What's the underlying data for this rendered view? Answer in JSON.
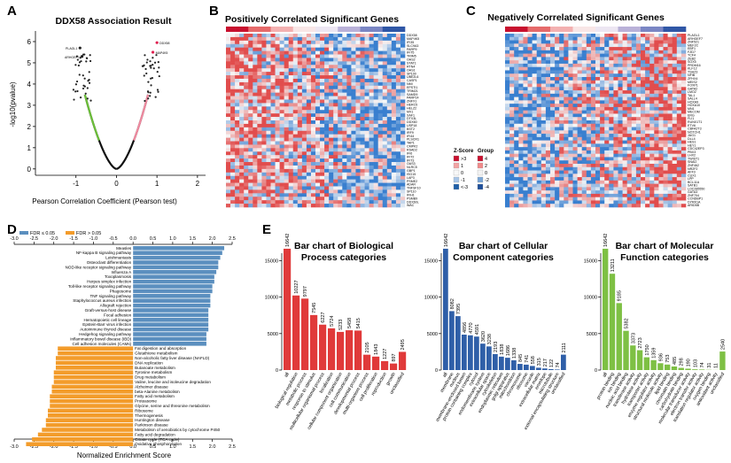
{
  "panel_labels": [
    "A",
    "B",
    "C",
    "D",
    "E"
  ],
  "colors": {
    "red": "#e03a3a",
    "blue": "#3a6fb7",
    "green": "#7ec044",
    "orange": "#f39c2b",
    "steelblue": "#5b8fbf",
    "black": "#111111",
    "volcano_green": "#6cbf3a",
    "volcano_pink": "#f08aa0"
  },
  "heatmap_legend": {
    "zscore_title": "Z-Score",
    "group_title": "Group",
    "zscore_levels": [
      ">3",
      "1",
      "0",
      "-1",
      "<-3"
    ],
    "zscore_colors": [
      "#c8102e",
      "#f3a4a4",
      "#f7f7f7",
      "#a9c6e8",
      "#1f5fa8"
    ],
    "group_levels": [
      "4",
      "2",
      "0",
      "-2",
      "-4"
    ],
    "group_colors": [
      "#c8102e",
      "#f08a8a",
      "#f2f2f2",
      "#7aa6d6",
      "#1f4f9a"
    ]
  },
  "heatmap_b": {
    "title": "Positively Correlated Significant Genes",
    "genes": [
      "DDX58",
      "MAP4K5",
      "IFI35",
      "SLC9A3",
      "PARP9",
      "IFIT5",
      "TRIM5",
      "OAS2",
      "STAT1",
      "RTN4",
      "OAS1",
      "SP100",
      "UBE2L6",
      "CASP1",
      "NMI",
      "EPSTI1",
      "TRIM21",
      "SAMD9",
      "PARP14",
      "ZNFX1",
      "HERC5",
      "HELZ2",
      "MX1",
      "XAF1",
      "DTX3L",
      "DDX60",
      "USP18",
      "BST2",
      "IRF9",
      "IFI44",
      "PLSCR1",
      "TAP1",
      "CMPK2",
      "RSAD2",
      "IFI6",
      "IFIT2",
      "IFIT3",
      "OAS3",
      "NLRC5",
      "GBP1",
      "ISG15",
      "LAP3",
      "PSME2",
      "ADAR",
      "TNFSF10",
      "SP110",
      "IFIH1",
      "PSMB9",
      "DDX60L",
      "WAC"
    ]
  },
  "heatmap_c": {
    "title": "Negatively Correlated Significant Genes",
    "genes": [
      "PLAGL1",
      "ARHGEF7",
      "ZNF521",
      "MEF2C",
      "EBF1",
      "FZD7",
      "TCF4",
      "ZEB2",
      "SOX5",
      "PRDM16",
      "KLF12",
      "TSHZ3",
      "NFIB",
      "ZFHX4",
      "MEIS2",
      "FOXP1",
      "GATA2",
      "LMO2",
      "TAL1",
      "SALL4",
      "HOXA9",
      "HOXA10",
      "MN1",
      "MECOM",
      "ERG",
      "FLI1",
      "RUNX1T1",
      "ETV6",
      "CBFA2T3",
      "NOTCH1",
      "JAG1",
      "DLL4",
      "HES1",
      "HEY1",
      "CDC42EP3",
      "PBX3",
      "LHX2",
      "TWIST1",
      "SNAI2",
      "ZNF462",
      "NR2F2",
      "AFF3",
      "CUX1",
      "LPP",
      "BCL11A",
      "SATB1",
      "LOC285550",
      "GATA3",
      "ZNF704",
      "CCNDBP1",
      "DYRK1A",
      "ARID5B"
    ]
  },
  "chart_data": [
    {
      "type": "scatter",
      "panel": "A",
      "title": "DDX58 Association Result",
      "xlabel": "Pearson Correlation Coefficient (Pearson test)",
      "ylabel": "-log10(pvalue)",
      "xlim": [
        -2,
        2.2
      ],
      "ylim": [
        -0.3,
        6.5
      ],
      "xticks": [
        "-1",
        "0",
        "1",
        "2"
      ],
      "yticks": [
        "0",
        "1",
        "2",
        "3",
        "4",
        "5",
        "6"
      ],
      "series": [
        {
          "name": "not significant",
          "color": "#111111",
          "shape": "V-shaped curve from (-0.78,3.5) to (0,0) to (0.78,3.5)"
        },
        {
          "name": "negative significant",
          "color": "#6cbf3a"
        },
        {
          "name": "positive significant",
          "color": "#f08aa0"
        }
      ],
      "labeled_points": [
        {
          "x": 1.0,
          "y": 5.95,
          "label": "DDX58"
        },
        {
          "x": 0.9,
          "y": 5.5,
          "label": "MAP4K5"
        },
        {
          "x": -0.9,
          "y": 5.7,
          "label": "PLAGL1"
        },
        {
          "x": -0.85,
          "y": 5.3,
          "label": "ARHGEF7"
        }
      ]
    },
    {
      "type": "bar",
      "panel": "D",
      "orientation": "horizontal",
      "xlabel": "Normalized Enrichment Score",
      "xlim": [
        -3.0,
        2.5
      ],
      "xticks": [
        "-3.0",
        "-2.5",
        "-2.0",
        "-1.5",
        "-1.0",
        "-0.5",
        "0.0",
        "0.5",
        "1.0",
        "1.5",
        "2.0",
        "2.5"
      ],
      "legend": [
        {
          "label": "FDR ≤ 0.05",
          "color": "#5b8fbf"
        },
        {
          "label": "FDR > 0.05",
          "color": "#f39c2b"
        }
      ],
      "positive": [
        {
          "label": "Measles",
          "value": 2.3
        },
        {
          "label": "NF-kappa B signaling pathway",
          "value": 2.25
        },
        {
          "label": "Leishmaniasis",
          "value": 2.2
        },
        {
          "label": "Osteoclast differentiation",
          "value": 2.15
        },
        {
          "label": "NOD-like receptor signaling pathway",
          "value": 2.15
        },
        {
          "label": "Influenza A",
          "value": 2.1
        },
        {
          "label": "Toxoplasmosis",
          "value": 2.05
        },
        {
          "label": "Herpes simplex infection",
          "value": 2.05
        },
        {
          "label": "Toll-like receptor signaling pathway",
          "value": 2.0
        },
        {
          "label": "Phagosome",
          "value": 2.0
        },
        {
          "label": "TNF signaling pathway",
          "value": 1.95
        },
        {
          "label": "Staphylococcus aureus infection",
          "value": 1.95
        },
        {
          "label": "Allograft rejection",
          "value": 1.95
        },
        {
          "label": "Graft-versus-host disease",
          "value": 1.9
        },
        {
          "label": "Focal adhesion",
          "value": 1.9
        },
        {
          "label": "Hematopoietic cell lineage",
          "value": 1.9
        },
        {
          "label": "Epstein-Barr virus infection",
          "value": 1.9
        },
        {
          "label": "Autoimmune thyroid disease",
          "value": 1.9
        },
        {
          "label": "Hedgehog signaling pathway",
          "value": 1.85
        },
        {
          "label": "Inflammatory bowel disease (IBD)",
          "value": 1.85
        },
        {
          "label": "Cell adhesion molecules (CAMs)",
          "value": 1.85
        }
      ],
      "negative": [
        {
          "label": "Fat digestion and absorption",
          "value": -1.9
        },
        {
          "label": "Glutathione metabolism",
          "value": -1.9
        },
        {
          "label": "Non-alcoholic fatty liver disease (NAFLD)",
          "value": -1.95
        },
        {
          "label": "DNA replication",
          "value": -1.95
        },
        {
          "label": "Butanoate metabolism",
          "value": -1.95
        },
        {
          "label": "Tyrosine metabolism",
          "value": -2.0
        },
        {
          "label": "Drug metabolism",
          "value": -2.0
        },
        {
          "label": "Valine, leucine and isoleucine degradation",
          "value": -2.0
        },
        {
          "label": "Alzheimer disease",
          "value": -2.05
        },
        {
          "label": "beta-Alanine metabolism",
          "value": -2.05
        },
        {
          "label": "Fatty acid metabolism",
          "value": -2.1
        },
        {
          "label": "Proteasome",
          "value": -2.1
        },
        {
          "label": "Glycine, serine and threonine metabolism",
          "value": -2.1
        },
        {
          "label": "Ribosome",
          "value": -2.15
        },
        {
          "label": "Thermogenesis",
          "value": -2.15
        },
        {
          "label": "Huntington disease",
          "value": -2.2
        },
        {
          "label": "Parkinson disease",
          "value": -2.2
        },
        {
          "label": "Metabolism of xenobiotics by cytochrome P450",
          "value": -2.3
        },
        {
          "label": "Fatty acid degradation",
          "value": -2.4
        },
        {
          "label": "Citrate cycle (TCA cycle)",
          "value": -2.55
        },
        {
          "label": "Oxidative phosphorylation",
          "value": -2.7
        }
      ]
    },
    {
      "type": "bar",
      "panel": "E",
      "title": "Bar chart of Biological Process categories",
      "title_lines": [
        "Bar chart of Biological",
        "Process categories"
      ],
      "color": "#e03a3a",
      "ylim": [
        0,
        17000
      ],
      "yticks": [
        0,
        5000,
        10000,
        15000
      ],
      "categories": [
        "all",
        "biological regulation",
        "metabolic process",
        "response to stimulus",
        "multicellular organismal process",
        "localization",
        "cellular component organization",
        "cell communication",
        "developmental process",
        "multi-organism process",
        "cell proliferation",
        "reproduction",
        "growth",
        "unclassified"
      ],
      "values": [
        16642,
        10227,
        9797,
        7545,
        6227,
        5724,
        5233,
        5458,
        5415,
        2105,
        1843,
        1227,
        897,
        2495
      ]
    },
    {
      "type": "bar",
      "panel": "E",
      "title": "Bar chart of Cellular Component categories",
      "title_lines": [
        "Bar chart of Cellular",
        "Component categories"
      ],
      "color": "#2f5fa8",
      "ylim": [
        0,
        17000
      ],
      "yticks": [
        0,
        5000,
        10000,
        15000
      ],
      "categories": [
        "all",
        "membrane",
        "nucleus",
        "membrane-enclosed lumen",
        "protein containing complex",
        "cytosol",
        "endomembrane system",
        "extracellular space",
        "cytoskeleton",
        "endoplasmic reticulum",
        "golgi apparatus",
        "mitochondrion",
        "chromosome",
        "ribosome",
        "vacuole",
        "extracellular matrix",
        "envelope",
        "microtubule",
        "external encapsulating structure",
        "unclassified"
      ],
      "values": [
        16642,
        8082,
        7395,
        4856,
        4770,
        4591,
        3620,
        3238,
        2193,
        1838,
        1686,
        1338,
        845,
        741,
        558,
        315,
        217,
        122,
        74,
        2111
      ]
    },
    {
      "type": "bar",
      "panel": "E",
      "title": "Bar chart of Molecular Function categories",
      "title_lines": [
        "Bar chart of Molecular",
        "Function categories"
      ],
      "color": "#7ec044",
      "ylim": [
        0,
        17000
      ],
      "yticks": [
        0,
        5000,
        10000,
        15000
      ],
      "categories": [
        "all",
        "protein binding",
        "ion binding",
        "nucleic acid binding",
        "transferase activity",
        "hydrolase activity",
        "transporter activity",
        "enzyme regulator activity",
        "structural molecule activity",
        "lipid binding",
        "chromatin binding",
        "carbohydrate binding",
        "molecular transducer activity",
        "electron transfer activity",
        "translation regulator activity",
        "oxygen binding",
        "antioxidant activity",
        "unclassified"
      ],
      "values": [
        16642,
        13211,
        9185,
        5382,
        3373,
        2723,
        1750,
        1359,
        936,
        753,
        485,
        298,
        190,
        103,
        74,
        31,
        11,
        2540
      ]
    }
  ]
}
